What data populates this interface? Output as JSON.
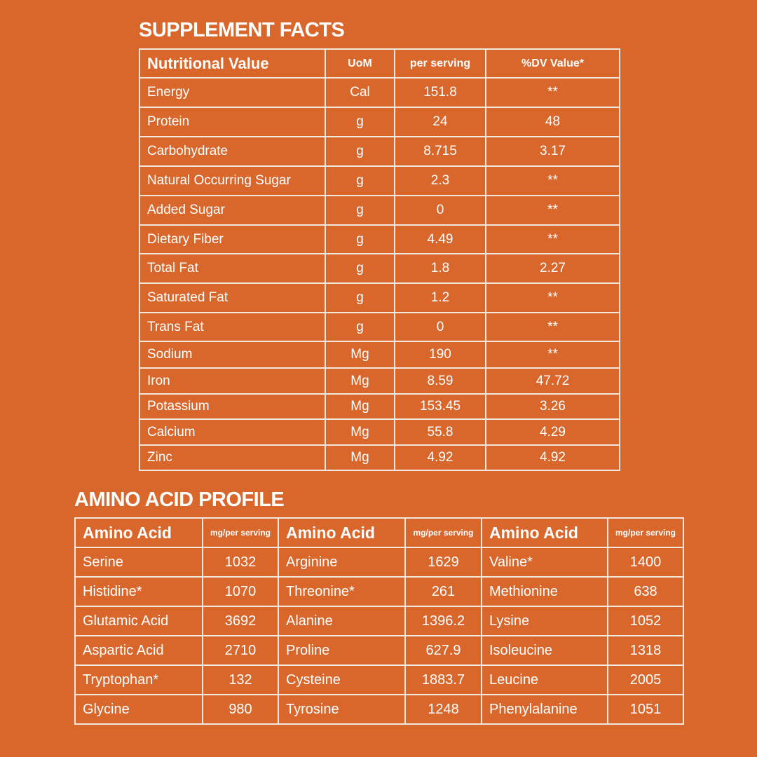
{
  "supplement_facts": {
    "title": "SUPPLEMENT FACTS",
    "headers": [
      "Nutritional Value",
      "UoM",
      "per serving",
      "%DV Value*"
    ],
    "rows": [
      [
        "Energy",
        "Cal",
        "151.8",
        "**"
      ],
      [
        "Protein",
        "g",
        "24",
        "48"
      ],
      [
        "Carbohydrate",
        "g",
        "8.715",
        "3.17"
      ],
      [
        "Natural Occurring Sugar",
        "g",
        "2.3",
        "**"
      ],
      [
        "Added Sugar",
        "g",
        "0",
        "**"
      ],
      [
        "Dietary Fiber",
        "g",
        "4.49",
        "**"
      ],
      [
        "Total Fat",
        "g",
        "1.8",
        "2.27"
      ],
      [
        "Saturated Fat",
        "g",
        "1.2",
        "**"
      ],
      [
        "Trans Fat",
        "g",
        "0",
        "**"
      ],
      [
        "Sodium",
        "Mg",
        "190",
        "**"
      ],
      [
        "Iron",
        "Mg",
        "8.59",
        "47.72"
      ],
      [
        "Potassium",
        "Mg",
        "153.45",
        "3.26"
      ],
      [
        "Calcium",
        "Mg",
        "55.8",
        "4.29"
      ],
      [
        "Zinc",
        "Mg",
        "4.92",
        "4.92"
      ]
    ]
  },
  "amino_acid_profile": {
    "title": "AMINO ACID PROFILE",
    "headers": [
      "Amino Acid",
      "mg/per serving",
      "Amino Acid",
      "mg/per serving",
      "Amino Acid",
      "mg/per serving"
    ],
    "rows": [
      [
        "Serine",
        "1032",
        "Arginine",
        "1629",
        "Valine*",
        "1400"
      ],
      [
        "Histidine*",
        "1070",
        "Threonine*",
        "261",
        "Methionine",
        "638"
      ],
      [
        "Glutamic Acid",
        "3692",
        "Alanine",
        "1396.2",
        "Lysine",
        "1052"
      ],
      [
        "Aspartic Acid",
        "2710",
        "Proline",
        "627.9",
        "Isoleucine",
        "1318"
      ],
      [
        "Tryptophan*",
        "132",
        "Cysteine",
        "1883.7",
        "Leucine",
        "2005"
      ],
      [
        "Glycine",
        "980",
        "Tyrosine",
        "1248",
        "Phenylalanine",
        "1051"
      ]
    ]
  },
  "colors": {
    "background": "#d9672c",
    "text": "#ffffff",
    "border": "#f3e6dc"
  }
}
